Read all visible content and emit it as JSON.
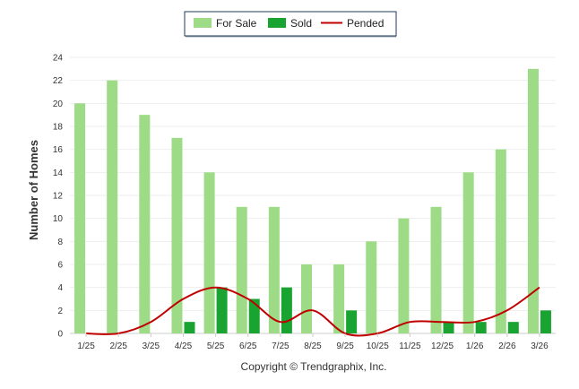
{
  "chart_data": {
    "type": "bar",
    "categories": [
      "1/25",
      "2/25",
      "3/25",
      "4/25",
      "5/25",
      "6/25",
      "7/25",
      "8/25",
      "9/25",
      "10/25",
      "11/25",
      "12/25",
      "1/26",
      "2/26",
      "3/26"
    ],
    "series": [
      {
        "name": "For Sale",
        "type": "bar",
        "color": "#9ddb86",
        "values": [
          20,
          22,
          19,
          17,
          14,
          11,
          11,
          6,
          6,
          8,
          10,
          11,
          14,
          16,
          23
        ]
      },
      {
        "name": "Sold",
        "type": "bar",
        "color": "#19a330",
        "values": [
          0,
          0,
          0,
          1,
          4,
          3,
          4,
          0,
          2,
          0,
          0,
          1,
          1,
          1,
          2
        ]
      },
      {
        "name": "Pended",
        "type": "line",
        "color": "#c00000",
        "values": [
          0,
          0,
          1,
          3,
          4,
          3,
          1,
          2,
          0,
          0,
          1,
          1,
          1,
          2,
          4
        ]
      }
    ],
    "title": "",
    "xlabel": "",
    "ylabel": "Number of Homes",
    "ylim": [
      0,
      24
    ],
    "yticks": [
      0,
      2,
      4,
      6,
      8,
      10,
      12,
      14,
      16,
      18,
      20,
      22,
      24
    ],
    "grid": true,
    "legend_position": "top-center"
  },
  "footer": {
    "credit": "Copyright © Trendgraphix, Inc."
  }
}
